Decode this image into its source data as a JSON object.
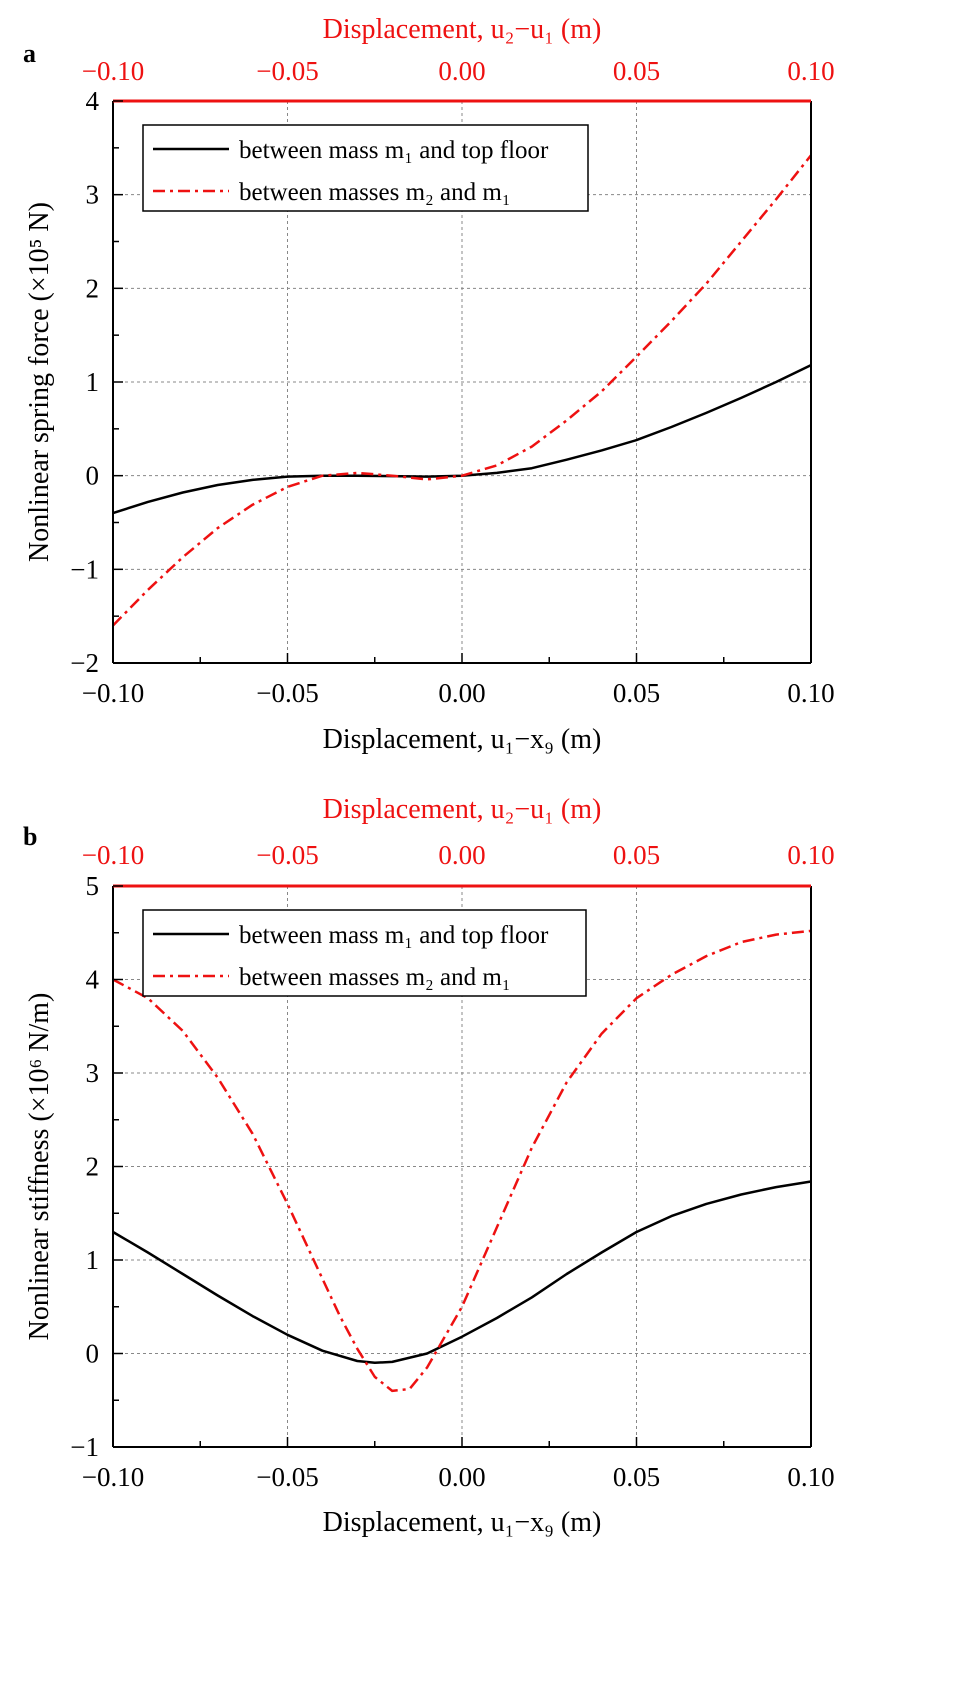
{
  "panels": [
    {
      "letter": "a"
    },
    {
      "letter": "b"
    }
  ],
  "chart_data": [
    {
      "type": "line",
      "panel_label": "a",
      "top_axis_label": "Displacement, u₂−u₁ (m)",
      "xlabel": "Displacement, u₁−x₉ (m)",
      "ylabel": "Nonlinear spring force (×10⁵ N)",
      "xlim": [
        -0.1,
        0.1
      ],
      "top_xlim": [
        -0.1,
        0.1
      ],
      "ylim": [
        -2,
        4
      ],
      "x_ticks": [
        "-0.10",
        "-0.05",
        "0.00",
        "0.05",
        "0.10"
      ],
      "top_x_ticks": [
        "-0.10",
        "-0.05",
        "0.00",
        "0.05",
        "0.10"
      ],
      "y_ticks": [
        "-2",
        "-1",
        "0",
        "1",
        "2",
        "3",
        "4"
      ],
      "grid": true,
      "legend_position": "top-left",
      "colors": {
        "series1": "#000000",
        "series2": "#ee1111",
        "top_axis": "#ee1111"
      },
      "series": [
        {
          "name": "between mass m₁ and top floor",
          "color": "#000000",
          "style": "solid",
          "axis": "bottom",
          "x": [
            -0.1,
            -0.09,
            -0.08,
            -0.07,
            -0.06,
            -0.05,
            -0.04,
            -0.03,
            -0.02,
            -0.01,
            0.0,
            0.01,
            0.02,
            0.03,
            0.04,
            0.05,
            0.06,
            0.07,
            0.08,
            0.09,
            0.1
          ],
          "y": [
            -0.4,
            -0.28,
            -0.18,
            -0.1,
            -0.045,
            -0.01,
            0.0,
            0.0,
            -0.005,
            -0.01,
            0.0,
            0.03,
            0.08,
            0.17,
            0.27,
            0.38,
            0.52,
            0.67,
            0.83,
            1.0,
            1.18
          ]
        },
        {
          "name": "between masses m₂ and m₁",
          "color": "#ee1111",
          "style": "dash-dot",
          "axis": "top",
          "x": [
            -0.1,
            -0.09,
            -0.08,
            -0.07,
            -0.06,
            -0.05,
            -0.04,
            -0.03,
            -0.02,
            -0.01,
            0.0,
            0.01,
            0.02,
            0.03,
            0.04,
            0.05,
            0.06,
            0.07,
            0.08,
            0.09,
            0.1
          ],
          "y": [
            -1.6,
            -1.22,
            -0.87,
            -0.56,
            -0.31,
            -0.12,
            0.0,
            0.03,
            0.0,
            -0.04,
            0.0,
            0.11,
            0.31,
            0.59,
            0.9,
            1.27,
            1.65,
            2.05,
            2.5,
            2.95,
            3.42
          ]
        }
      ]
    },
    {
      "type": "line",
      "panel_label": "b",
      "top_axis_label": "Displacement, u₂−u₁ (m)",
      "xlabel": "Displacement, u₁−x₉ (m)",
      "ylabel": "Nonlinear stiffness (×10⁶ N/m)",
      "xlim": [
        -0.1,
        0.1
      ],
      "top_xlim": [
        -0.1,
        0.1
      ],
      "ylim": [
        -1,
        5
      ],
      "x_ticks": [
        "-0.10",
        "-0.05",
        "0.00",
        "0.05",
        "0.10"
      ],
      "top_x_ticks": [
        "-0.10",
        "-0.05",
        "0.00",
        "0.05",
        "0.10"
      ],
      "y_ticks": [
        "-1",
        "0",
        "1",
        "2",
        "3",
        "4",
        "5"
      ],
      "grid": true,
      "legend_position": "top-left",
      "colors": {
        "series1": "#000000",
        "series2": "#ee1111",
        "top_axis": "#ee1111"
      },
      "series": [
        {
          "name": "between mass m₁ and top floor",
          "color": "#000000",
          "style": "solid",
          "axis": "bottom",
          "x": [
            -0.1,
            -0.09,
            -0.08,
            -0.07,
            -0.06,
            -0.05,
            -0.04,
            -0.03,
            -0.025,
            -0.02,
            -0.01,
            0.0,
            0.01,
            0.02,
            0.03,
            0.04,
            0.05,
            0.06,
            0.07,
            0.08,
            0.09,
            0.1
          ],
          "y": [
            1.3,
            1.08,
            0.85,
            0.62,
            0.4,
            0.2,
            0.03,
            -0.08,
            -0.1,
            -0.09,
            0.0,
            0.18,
            0.38,
            0.6,
            0.85,
            1.08,
            1.3,
            1.47,
            1.6,
            1.7,
            1.78,
            1.84
          ]
        },
        {
          "name": "between masses m₂ and m₁",
          "color": "#ee1111",
          "style": "dash-dot",
          "axis": "top",
          "x": [
            -0.1,
            -0.09,
            -0.08,
            -0.07,
            -0.06,
            -0.05,
            -0.04,
            -0.035,
            -0.03,
            -0.025,
            -0.02,
            -0.015,
            -0.01,
            0.0,
            0.01,
            0.02,
            0.03,
            0.04,
            0.05,
            0.06,
            0.07,
            0.08,
            0.09,
            0.1
          ],
          "y": [
            4.0,
            3.8,
            3.45,
            2.95,
            2.35,
            1.6,
            0.8,
            0.4,
            0.05,
            -0.25,
            -0.4,
            -0.38,
            -0.15,
            0.5,
            1.35,
            2.2,
            2.9,
            3.42,
            3.8,
            4.05,
            4.25,
            4.4,
            4.48,
            4.52
          ]
        }
      ]
    }
  ]
}
